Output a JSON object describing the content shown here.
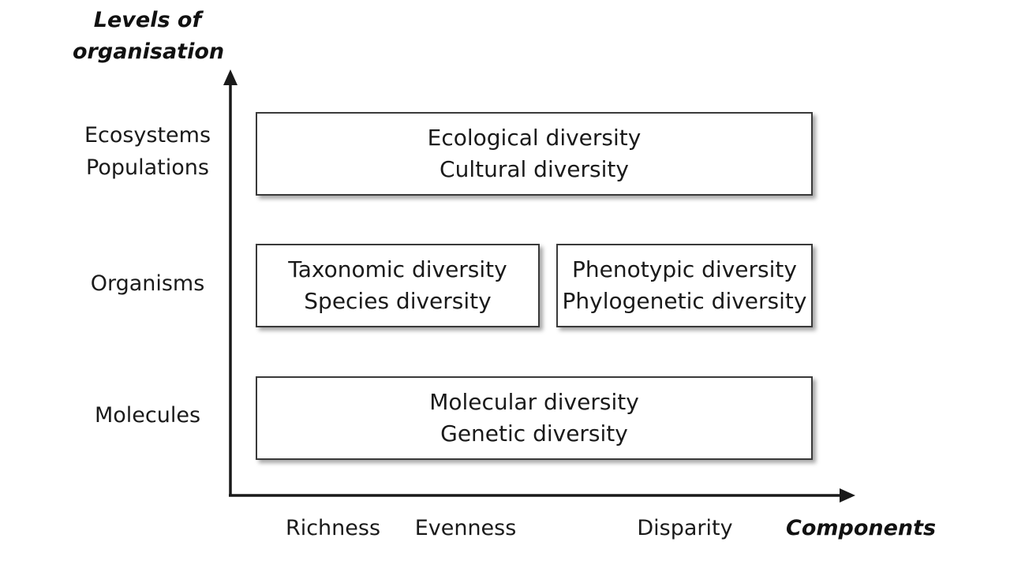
{
  "axes": {
    "y_title_line1": "Levels of",
    "y_title_line2": "organisation",
    "x_title": "Components"
  },
  "levels": {
    "ecosystems": "Ecosystems",
    "populations": "Populations",
    "organisms": "Organisms",
    "molecules": "Molecules"
  },
  "components": {
    "richness": "Richness",
    "evenness": "Evenness",
    "disparity": "Disparity"
  },
  "boxes": {
    "ecological": {
      "line1": "Ecological diversity",
      "line2": "Cultural diversity"
    },
    "taxonomic": {
      "line1": "Taxonomic diversity",
      "line2": "Species diversity"
    },
    "phenotypic": {
      "line1": "Phenotypic diversity",
      "line2": "Phylogenetic diversity"
    },
    "molecular": {
      "line1": "Molecular diversity",
      "line2": "Genetic diversity"
    }
  }
}
